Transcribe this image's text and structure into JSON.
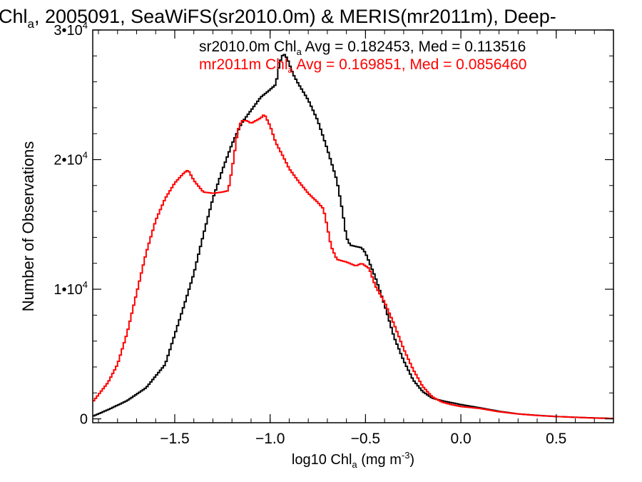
{
  "chart_data": {
    "type": "line",
    "title": {
      "pre": "Chl",
      "sub": "a",
      "post": ", 2005091, SeaWiFS(sr2010.0m) & MERIS(mr2011m), Deep-"
    },
    "xlabel": {
      "pre": "log10 Chl",
      "sub": "a",
      "mid": " (mg m",
      "sup": "-3",
      "post": ")"
    },
    "ylabel": "Number of Observations",
    "xlim": [
      -1.93,
      0.8
    ],
    "ylim": [
      -300,
      30000
    ],
    "x_ticks": [
      {
        "value": -1.5,
        "label": "−1.5"
      },
      {
        "value": -1.0,
        "label": "−1.0"
      },
      {
        "value": -0.5,
        "label": "−0.5"
      },
      {
        "value": 0.0,
        "label": "0.0"
      },
      {
        "value": 0.5,
        "label": "0.5"
      }
    ],
    "x_minor_step": 0.1,
    "y_ticks": [
      {
        "value": 0,
        "base": "0",
        "exp": ""
      },
      {
        "value": 10000,
        "base": "1•10",
        "exp": "4"
      },
      {
        "value": 20000,
        "base": "2•10",
        "exp": "4"
      },
      {
        "value": 30000,
        "base": "3•10",
        "exp": "4"
      }
    ],
    "y_minor_step": 2000,
    "grid": false,
    "step_width": 0.01,
    "series": [
      {
        "color": "#000000",
        "legend": {
          "pre": "sr2010.0m Chl",
          "sub": "a",
          "post": " Avg = 0.182453, Med = 0.113516"
        },
        "points": [
          [
            -1.93,
            200
          ],
          [
            -1.85,
            700
          ],
          [
            -1.75,
            1400
          ],
          [
            -1.65,
            2400
          ],
          [
            -1.55,
            4200
          ],
          [
            -1.45,
            8800
          ],
          [
            -1.4,
            11200
          ],
          [
            -1.35,
            14200
          ],
          [
            -1.3,
            17000
          ],
          [
            -1.25,
            19200
          ],
          [
            -1.2,
            21200
          ],
          [
            -1.15,
            22800
          ],
          [
            -1.1,
            23800
          ],
          [
            -1.05,
            24800
          ],
          [
            -1.0,
            25400
          ],
          [
            -0.97,
            25800
          ],
          [
            -0.95,
            27500
          ],
          [
            -0.93,
            28200
          ],
          [
            -0.91,
            27800
          ],
          [
            -0.88,
            26600
          ],
          [
            -0.85,
            25800
          ],
          [
            -0.8,
            24600
          ],
          [
            -0.75,
            23000
          ],
          [
            -0.7,
            20800
          ],
          [
            -0.65,
            18400
          ],
          [
            -0.62,
            16000
          ],
          [
            -0.6,
            14000
          ],
          [
            -0.58,
            13400
          ],
          [
            -0.55,
            13300
          ],
          [
            -0.52,
            13200
          ],
          [
            -0.5,
            12800
          ],
          [
            -0.45,
            11000
          ],
          [
            -0.4,
            8800
          ],
          [
            -0.35,
            6300
          ],
          [
            -0.3,
            4500
          ],
          [
            -0.25,
            3000
          ],
          [
            -0.2,
            2100
          ],
          [
            -0.15,
            1600
          ],
          [
            -0.1,
            1400
          ],
          [
            -0.05,
            1250
          ],
          [
            0.0,
            1100
          ],
          [
            0.1,
            850
          ],
          [
            0.2,
            580
          ],
          [
            0.3,
            380
          ],
          [
            0.4,
            270
          ],
          [
            0.5,
            180
          ],
          [
            0.6,
            120
          ],
          [
            0.7,
            70
          ],
          [
            0.8,
            30
          ]
        ]
      },
      {
        "color": "#ff0000",
        "legend": {
          "pre": "mr2011m Chl",
          "sub": "a",
          "post": " Avg = 0.169851, Med = 0.0856460"
        },
        "points": [
          [
            -1.93,
            1300
          ],
          [
            -1.85,
            2800
          ],
          [
            -1.8,
            4200
          ],
          [
            -1.75,
            6600
          ],
          [
            -1.7,
            9700
          ],
          [
            -1.65,
            12800
          ],
          [
            -1.6,
            15300
          ],
          [
            -1.55,
            17000
          ],
          [
            -1.5,
            18200
          ],
          [
            -1.45,
            19000
          ],
          [
            -1.43,
            19200
          ],
          [
            -1.4,
            18400
          ],
          [
            -1.35,
            17500
          ],
          [
            -1.3,
            17400
          ],
          [
            -1.25,
            17500
          ],
          [
            -1.22,
            17600
          ],
          [
            -1.2,
            19200
          ],
          [
            -1.17,
            22200
          ],
          [
            -1.15,
            23000
          ],
          [
            -1.12,
            23000
          ],
          [
            -1.1,
            22800
          ],
          [
            -1.05,
            23200
          ],
          [
            -1.03,
            23500
          ],
          [
            -1.0,
            22600
          ],
          [
            -0.97,
            21300
          ],
          [
            -0.93,
            20200
          ],
          [
            -0.9,
            19300
          ],
          [
            -0.85,
            18300
          ],
          [
            -0.8,
            17400
          ],
          [
            -0.75,
            16700
          ],
          [
            -0.72,
            16200
          ],
          [
            -0.7,
            14800
          ],
          [
            -0.68,
            13300
          ],
          [
            -0.65,
            12300
          ],
          [
            -0.6,
            12100
          ],
          [
            -0.55,
            11800
          ],
          [
            -0.52,
            12000
          ],
          [
            -0.48,
            11600
          ],
          [
            -0.45,
            10300
          ],
          [
            -0.4,
            9000
          ],
          [
            -0.35,
            7300
          ],
          [
            -0.3,
            5400
          ],
          [
            -0.25,
            3800
          ],
          [
            -0.2,
            2500
          ],
          [
            -0.15,
            1700
          ],
          [
            -0.1,
            1300
          ],
          [
            -0.05,
            1100
          ],
          [
            0.0,
            950
          ],
          [
            0.1,
            800
          ],
          [
            0.2,
            550
          ],
          [
            0.3,
            380
          ],
          [
            0.4,
            260
          ],
          [
            0.5,
            180
          ],
          [
            0.6,
            120
          ],
          [
            0.7,
            60
          ],
          [
            0.8,
            25
          ]
        ]
      }
    ]
  }
}
